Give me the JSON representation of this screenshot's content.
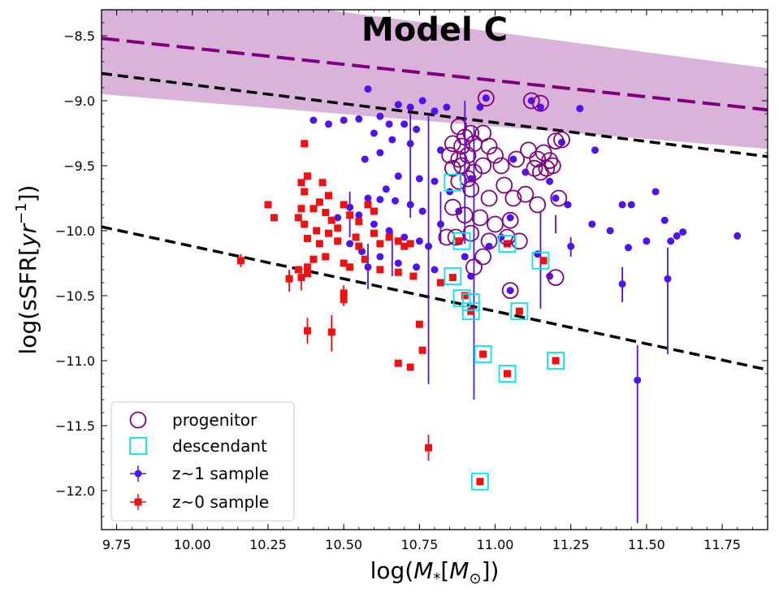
{
  "chart_data": {
    "type": "scatter",
    "title": "Model C",
    "xlabel_prefix": "log(",
    "xlabel_symbol": "M",
    "xlabel_sub": "*",
    "xlabel_bracket_open": "[",
    "xlabel_unit": "M",
    "xlabel_unit_sub": "⊙",
    "xlabel_suffix": "])",
    "ylabel_prefix": "log(sSFR[",
    "ylabel_unit": "yr",
    "ylabel_exp": "−1",
    "ylabel_suffix": "])",
    "xlim": [
      9.7,
      11.9
    ],
    "ylim": [
      -12.3,
      -8.3
    ],
    "xticks": [
      "9.75",
      "10.00",
      "10.25",
      "10.50",
      "10.75",
      "11.00",
      "11.25",
      "11.50",
      "11.75"
    ],
    "yticks": [
      "−8.5",
      "−9.0",
      "−9.5",
      "−10.0",
      "−10.5",
      "−11.0",
      "−11.5",
      "−12.0"
    ],
    "xtick_values": [
      9.75,
      10.0,
      10.25,
      10.5,
      10.75,
      11.0,
      11.25,
      11.5,
      11.75
    ],
    "ytick_values": [
      -8.5,
      -9.0,
      -9.5,
      -10.0,
      -10.5,
      -11.0,
      -11.5,
      -12.0
    ],
    "colors": {
      "band": "#d9b3d9",
      "band_line": "#800080",
      "dashed": "#000000",
      "z1": "#4f14ee",
      "z0": "#ee1111",
      "progenitor": "#800080",
      "descendant": "#00e5f5"
    },
    "lines": {
      "ms_band_upper": [
        [
          9.7,
          -8.07
        ],
        [
          11.9,
          -8.75
        ]
      ],
      "ms_band_lower": [
        [
          9.7,
          -8.95
        ],
        [
          11.9,
          -9.37
        ]
      ],
      "ms_z1_median": [
        [
          9.7,
          -8.52
        ],
        [
          11.9,
          -9.07
        ]
      ],
      "upper_cut": [
        [
          9.7,
          -8.79
        ],
        [
          11.9,
          -9.43
        ]
      ],
      "lower_cut": [
        [
          9.7,
          -9.97
        ],
        [
          11.9,
          -11.07
        ]
      ]
    },
    "legend": [
      {
        "label": "progenitor",
        "marker": "open-circle"
      },
      {
        "label": "descendant",
        "marker": "open-square"
      },
      {
        "label": "z~1 sample",
        "marker": "circle-errorbar"
      },
      {
        "label": "z~0 sample",
        "marker": "square-errorbar"
      }
    ],
    "z1_sample": [
      {
        "x": 10.58,
        "y": -8.91
      },
      {
        "x": 10.68,
        "y": -9.03
      },
      {
        "x": 10.72,
        "y": -9.05
      },
      {
        "x": 10.76,
        "y": -9.0
      },
      {
        "x": 10.62,
        "y": -9.12
      },
      {
        "x": 10.65,
        "y": -9.18
      },
      {
        "x": 10.55,
        "y": -9.14
      },
      {
        "x": 10.5,
        "y": -9.15
      },
      {
        "x": 10.45,
        "y": -9.18
      },
      {
        "x": 10.4,
        "y": -9.15
      },
      {
        "x": 10.6,
        "y": -9.25
      },
      {
        "x": 10.7,
        "y": -9.18
      },
      {
        "x": 10.74,
        "y": -9.22
      },
      {
        "x": 10.8,
        "y": -9.08
      },
      {
        "x": 10.84,
        "y": -9.05
      },
      {
        "x": 10.66,
        "y": -9.3
      },
      {
        "x": 10.72,
        "y": -9.33
      },
      {
        "x": 10.62,
        "y": -9.4
      },
      {
        "x": 10.57,
        "y": -9.45
      },
      {
        "x": 10.82,
        "y": -9.38
      },
      {
        "x": 10.68,
        "y": -9.58
      },
      {
        "x": 10.75,
        "y": -9.6
      },
      {
        "x": 10.8,
        "y": -9.62
      },
      {
        "x": 10.64,
        "y": -9.68
      },
      {
        "x": 10.58,
        "y": -9.75
      },
      {
        "x": 10.62,
        "y": -9.76
      },
      {
        "x": 10.67,
        "y": -9.77
      },
      {
        "x": 10.72,
        "y": -9.8
      },
      {
        "x": 10.76,
        "y": -9.85
      },
      {
        "x": 10.52,
        "y": -9.82
      },
      {
        "x": 10.48,
        "y": -9.9
      },
      {
        "x": 10.55,
        "y": -9.88
      },
      {
        "x": 10.6,
        "y": -9.95
      },
      {
        "x": 10.65,
        "y": -10.0
      },
      {
        "x": 10.7,
        "y": -10.05
      },
      {
        "x": 10.75,
        "y": -10.08
      },
      {
        "x": 10.78,
        "y": -10.12
      },
      {
        "x": 10.56,
        "y": -10.16
      },
      {
        "x": 10.52,
        "y": -10.1
      },
      {
        "x": 10.62,
        "y": -10.2
      },
      {
        "x": 10.68,
        "y": -10.25
      },
      {
        "x": 10.74,
        "y": -10.28
      },
      {
        "x": 10.8,
        "y": -10.3
      },
      {
        "x": 10.82,
        "y": -9.95
      },
      {
        "x": 10.85,
        "y": -9.7
      },
      {
        "x": 10.88,
        "y": -9.85
      },
      {
        "x": 10.92,
        "y": -9.6
      },
      {
        "x": 10.95,
        "y": -9.05
      },
      {
        "x": 10.97,
        "y": -8.98
      },
      {
        "x": 11.12,
        "y": -9.0
      },
      {
        "x": 11.15,
        "y": -9.05
      },
      {
        "x": 11.28,
        "y": -9.06
      },
      {
        "x": 11.33,
        "y": -9.38
      },
      {
        "x": 11.22,
        "y": -9.32
      },
      {
        "x": 11.06,
        "y": -9.45
      },
      {
        "x": 11.1,
        "y": -9.55
      },
      {
        "x": 11.18,
        "y": -9.62
      },
      {
        "x": 11.24,
        "y": -9.8
      },
      {
        "x": 11.2,
        "y": -9.75
      },
      {
        "x": 11.05,
        "y": -9.9
      },
      {
        "x": 11.02,
        "y": -10.05
      },
      {
        "x": 10.98,
        "y": -10.12
      },
      {
        "x": 11.25,
        "y": -10.12
      },
      {
        "x": 11.32,
        "y": -9.95
      },
      {
        "x": 11.38,
        "y": -10.0
      },
      {
        "x": 11.42,
        "y": -9.8
      },
      {
        "x": 11.45,
        "y": -9.8
      },
      {
        "x": 11.53,
        "y": -9.7
      },
      {
        "x": 11.56,
        "y": -9.92
      },
      {
        "x": 11.62,
        "y": -10.01
      },
      {
        "x": 11.8,
        "y": -10.04
      },
      {
        "x": 11.58,
        "y": -10.08
      },
      {
        "x": 11.6,
        "y": -10.04
      },
      {
        "x": 11.5,
        "y": -10.08
      },
      {
        "x": 11.44,
        "y": -10.13
      },
      {
        "x": 11.18,
        "y": -10.35
      },
      {
        "x": 11.14,
        "y": -10.18
      },
      {
        "x": 10.9,
        "y": -10.2
      },
      {
        "x": 10.92,
        "y": -10.35
      },
      {
        "x": 11.05,
        "y": -10.46
      },
      {
        "x": 11.42,
        "y": -10.41
      },
      {
        "x": 11.57,
        "y": -10.37
      },
      {
        "x": 11.47,
        "y": -11.15
      },
      {
        "x": 10.58,
        "y": -10.28
      }
    ],
    "z1_errorbars": [
      {
        "x": 10.72,
        "y": -9.5,
        "ylow": -9.9,
        "yhigh": -9.1
      },
      {
        "x": 10.78,
        "y": -10.25,
        "ylow": -11.18,
        "yhigh": -9.12
      },
      {
        "x": 10.93,
        "y": -10.35,
        "ylow": -11.3,
        "yhigh": -9.2
      },
      {
        "x": 10.9,
        "y": -9.75,
        "ylow": -10.1,
        "yhigh": -9.0
      },
      {
        "x": 11.15,
        "y": -10.23,
        "ylow": -10.6,
        "yhigh": -9.85
      },
      {
        "x": 11.47,
        "y": -11.15,
        "ylow": -12.25,
        "yhigh": -10.88
      },
      {
        "x": 11.57,
        "y": -10.37,
        "ylow": -10.95,
        "yhigh": -10.13
      },
      {
        "x": 11.42,
        "y": -10.41,
        "ylow": -10.55,
        "yhigh": -10.28
      },
      {
        "x": 11.25,
        "y": -10.12,
        "ylow": -10.2,
        "yhigh": -10.05
      },
      {
        "x": 10.58,
        "y": -10.25,
        "ylow": -10.45,
        "yhigh": -10.1
      },
      {
        "x": 10.82,
        "y": -9.95,
        "ylow": -10.1,
        "yhigh": -9.7
      },
      {
        "x": 10.66,
        "y": -10.18,
        "ylow": -10.35,
        "yhigh": -10.0
      },
      {
        "x": 10.52,
        "y": -9.85,
        "ylow": -10.05,
        "yhigh": -9.7
      },
      {
        "x": 11.2,
        "y": -9.95,
        "ylow": -10.02,
        "yhigh": -9.88
      }
    ],
    "z0_sample": [
      {
        "x": 10.37,
        "y": -9.33
      },
      {
        "x": 10.38,
        "y": -9.58
      },
      {
        "x": 10.36,
        "y": -9.63
      },
      {
        "x": 10.37,
        "y": -9.7
      },
      {
        "x": 10.43,
        "y": -9.63
      },
      {
        "x": 10.45,
        "y": -9.73
      },
      {
        "x": 10.42,
        "y": -9.78
      },
      {
        "x": 10.4,
        "y": -9.83
      },
      {
        "x": 10.36,
        "y": -9.83
      },
      {
        "x": 10.44,
        "y": -9.86
      },
      {
        "x": 10.46,
        "y": -9.92
      },
      {
        "x": 10.5,
        "y": -9.8
      },
      {
        "x": 10.52,
        "y": -9.88
      },
      {
        "x": 10.55,
        "y": -9.93
      },
      {
        "x": 10.58,
        "y": -9.8
      },
      {
        "x": 10.6,
        "y": -9.85
      },
      {
        "x": 10.48,
        "y": -9.98
      },
      {
        "x": 10.45,
        "y": -10.02
      },
      {
        "x": 10.41,
        "y": -10.0
      },
      {
        "x": 10.37,
        "y": -9.95
      },
      {
        "x": 10.35,
        "y": -9.9
      },
      {
        "x": 10.25,
        "y": -9.8
      },
      {
        "x": 10.27,
        "y": -9.9
      },
      {
        "x": 10.38,
        "y": -10.06
      },
      {
        "x": 10.42,
        "y": -10.1
      },
      {
        "x": 10.48,
        "y": -10.08
      },
      {
        "x": 10.54,
        "y": -10.05
      },
      {
        "x": 10.55,
        "y": -10.12
      },
      {
        "x": 10.6,
        "y": -10.02
      },
      {
        "x": 10.62,
        "y": -10.1
      },
      {
        "x": 10.65,
        "y": -10.05
      },
      {
        "x": 10.68,
        "y": -10.08
      },
      {
        "x": 10.7,
        "y": -10.12
      },
      {
        "x": 10.72,
        "y": -10.1
      },
      {
        "x": 10.44,
        "y": -10.2
      },
      {
        "x": 10.4,
        "y": -10.22
      },
      {
        "x": 10.38,
        "y": -10.28
      },
      {
        "x": 10.35,
        "y": -10.3
      },
      {
        "x": 10.5,
        "y": -10.25
      },
      {
        "x": 10.52,
        "y": -10.28
      },
      {
        "x": 10.57,
        "y": -10.22
      },
      {
        "x": 10.62,
        "y": -10.3
      },
      {
        "x": 10.68,
        "y": -10.32
      },
      {
        "x": 10.73,
        "y": -10.35
      },
      {
        "x": 10.36,
        "y": -10.36
      },
      {
        "x": 10.32,
        "y": -10.37
      },
      {
        "x": 10.38,
        "y": -10.33
      },
      {
        "x": 10.16,
        "y": -10.23
      },
      {
        "x": 10.5,
        "y": -10.48
      },
      {
        "x": 10.5,
        "y": -10.53
      },
      {
        "x": 10.38,
        "y": -10.77
      },
      {
        "x": 10.46,
        "y": -10.78
      },
      {
        "x": 10.68,
        "y": -11.02
      },
      {
        "x": 10.72,
        "y": -11.05
      },
      {
        "x": 10.76,
        "y": -10.92
      },
      {
        "x": 10.75,
        "y": -10.72
      },
      {
        "x": 10.78,
        "y": -11.67
      },
      {
        "x": 10.82,
        "y": -10.4
      },
      {
        "x": 10.86,
        "y": -10.36
      },
      {
        "x": 10.9,
        "y": -10.5
      },
      {
        "x": 10.92,
        "y": -10.62
      },
      {
        "x": 10.96,
        "y": -10.95
      },
      {
        "x": 11.04,
        "y": -11.1
      },
      {
        "x": 11.08,
        "y": -10.62
      },
      {
        "x": 11.16,
        "y": -10.23
      },
      {
        "x": 11.2,
        "y": -11.0
      },
      {
        "x": 10.95,
        "y": -11.93
      },
      {
        "x": 11.04,
        "y": -10.1
      },
      {
        "x": 10.88,
        "y": -10.08
      }
    ],
    "z0_errorbars": [
      {
        "x": 10.38,
        "y": -10.77,
        "ylow": -10.87,
        "yhigh": -10.67
      },
      {
        "x": 10.46,
        "y": -10.78,
        "ylow": -10.93,
        "yhigh": -10.65
      },
      {
        "x": 10.78,
        "y": -11.67,
        "ylow": -11.77,
        "yhigh": -11.57
      },
      {
        "x": 10.32,
        "y": -10.37,
        "ylow": -10.47,
        "yhigh": -10.3
      },
      {
        "x": 10.36,
        "y": -10.36,
        "ylow": -10.46,
        "yhigh": -10.28
      },
      {
        "x": 10.5,
        "y": -10.5,
        "ylow": -10.58,
        "yhigh": -10.42
      },
      {
        "x": 10.16,
        "y": -10.23,
        "ylow": -10.28,
        "yhigh": -10.18
      }
    ],
    "progenitors": [
      {
        "x": 10.97,
        "y": -8.98
      },
      {
        "x": 11.12,
        "y": -9.0
      },
      {
        "x": 11.15,
        "y": -9.02
      },
      {
        "x": 10.88,
        "y": -9.2
      },
      {
        "x": 10.92,
        "y": -9.25
      },
      {
        "x": 10.96,
        "y": -9.25
      },
      {
        "x": 10.9,
        "y": -9.28
      },
      {
        "x": 10.86,
        "y": -9.33
      },
      {
        "x": 10.89,
        "y": -9.35
      },
      {
        "x": 10.93,
        "y": -9.33
      },
      {
        "x": 10.98,
        "y": -9.35
      },
      {
        "x": 10.85,
        "y": -9.42
      },
      {
        "x": 10.88,
        "y": -9.45
      },
      {
        "x": 10.91,
        "y": -9.42
      },
      {
        "x": 11.0,
        "y": -9.42
      },
      {
        "x": 10.86,
        "y": -9.52
      },
      {
        "x": 10.89,
        "y": -9.5
      },
      {
        "x": 10.93,
        "y": -9.55
      },
      {
        "x": 10.96,
        "y": -9.5
      },
      {
        "x": 11.02,
        "y": -9.5
      },
      {
        "x": 11.07,
        "y": -9.45
      },
      {
        "x": 11.11,
        "y": -9.38
      },
      {
        "x": 11.14,
        "y": -9.45
      },
      {
        "x": 11.16,
        "y": -9.4
      },
      {
        "x": 11.18,
        "y": -9.46
      },
      {
        "x": 11.2,
        "y": -9.31
      },
      {
        "x": 11.22,
        "y": -9.3
      },
      {
        "x": 11.13,
        "y": -9.52
      },
      {
        "x": 11.15,
        "y": -9.55
      },
      {
        "x": 11.17,
        "y": -9.52
      },
      {
        "x": 11.19,
        "y": -9.5
      },
      {
        "x": 10.88,
        "y": -9.62
      },
      {
        "x": 10.92,
        "y": -9.68
      },
      {
        "x": 10.98,
        "y": -9.75
      },
      {
        "x": 11.03,
        "y": -9.65
      },
      {
        "x": 11.06,
        "y": -9.75
      },
      {
        "x": 11.1,
        "y": -9.72
      },
      {
        "x": 11.14,
        "y": -9.8
      },
      {
        "x": 11.21,
        "y": -9.75
      },
      {
        "x": 10.86,
        "y": -9.82
      },
      {
        "x": 10.9,
        "y": -9.88
      },
      {
        "x": 10.95,
        "y": -9.9
      },
      {
        "x": 11.0,
        "y": -9.95
      },
      {
        "x": 11.05,
        "y": -9.92
      },
      {
        "x": 10.87,
        "y": -10.05
      },
      {
        "x": 10.92,
        "y": -10.02
      },
      {
        "x": 10.98,
        "y": -10.08
      },
      {
        "x": 11.04,
        "y": -10.05
      },
      {
        "x": 11.08,
        "y": -10.08
      },
      {
        "x": 10.93,
        "y": -10.28
      },
      {
        "x": 10.96,
        "y": -10.2
      },
      {
        "x": 11.05,
        "y": -10.46
      },
      {
        "x": 11.2,
        "y": -10.36
      },
      {
        "x": 10.84,
        "y": -10.05
      },
      {
        "x": 10.91,
        "y": -9.6
      }
    ],
    "descendants": [
      {
        "x": 10.86,
        "y": -9.63
      },
      {
        "x": 10.89,
        "y": -10.08
      },
      {
        "x": 10.86,
        "y": -10.35
      },
      {
        "x": 10.89,
        "y": -10.52
      },
      {
        "x": 10.92,
        "y": -10.55
      },
      {
        "x": 10.92,
        "y": -10.62
      },
      {
        "x": 11.04,
        "y": -10.1
      },
      {
        "x": 11.15,
        "y": -10.23
      },
      {
        "x": 11.08,
        "y": -10.62
      },
      {
        "x": 10.96,
        "y": -10.95
      },
      {
        "x": 11.04,
        "y": -11.1
      },
      {
        "x": 11.2,
        "y": -11.0
      },
      {
        "x": 10.95,
        "y": -11.93
      }
    ]
  }
}
